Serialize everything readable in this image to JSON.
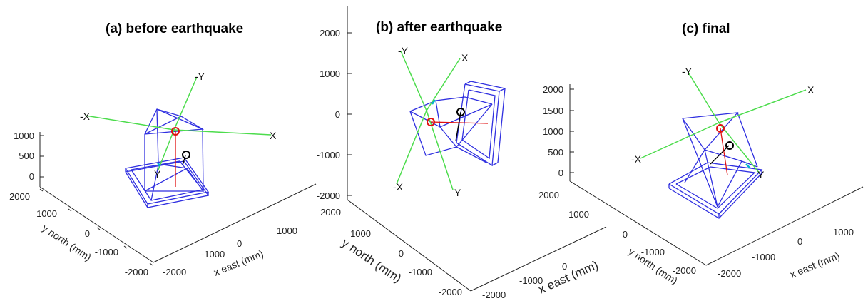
{
  "panels": [
    {
      "title": "(a)  before earthquake",
      "z_ticks": [
        "1000",
        "500",
        "0"
      ],
      "y_ticks": [
        "2000",
        "1000",
        "0",
        "-1000",
        "-2000"
      ],
      "x_ticks": [
        "-2000",
        "-1000",
        "0",
        "1000"
      ],
      "ylabel": "y north (mm)",
      "xlabel": "x east (mm)",
      "vectors": {
        "neg_x": "-X",
        "pos_x": "X",
        "neg_y": "-Y",
        "pos_y": "Y"
      }
    },
    {
      "title": "(b)  after earthquake",
      "z_ticks": [
        "2000",
        "1000",
        "0",
        "-1000",
        "-2000"
      ],
      "y_ticks": [
        "2000",
        "1000",
        "0",
        "-1000",
        "-2000"
      ],
      "x_ticks": [
        "-2000",
        "-1000",
        "0"
      ],
      "ylabel": "y north (mm)",
      "xlabel": "x east (mm)",
      "vectors": {
        "neg_x": "-X",
        "pos_x": "X",
        "neg_y": "-Y",
        "pos_y": "Y"
      }
    },
    {
      "title": "(c)  final",
      "z_ticks": [
        "2000",
        "1500",
        "1000",
        "500",
        "0"
      ],
      "y_ticks": [
        "2000",
        "1000",
        "0",
        "-1000",
        "-2000"
      ],
      "x_ticks": [
        "-2000",
        "-1000",
        "0",
        "1000"
      ],
      "ylabel": "y north (mm)",
      "xlabel": "x east (mm)",
      "vectors": {
        "neg_x": "-X",
        "pos_x": "X",
        "neg_y": "-Y",
        "pos_y": "Y"
      }
    }
  ],
  "colors": {
    "wireframe": "#2f2fe0",
    "local_axes": "#4cdc4c",
    "red_marker": "#e01010",
    "black_marker": "#000000"
  }
}
